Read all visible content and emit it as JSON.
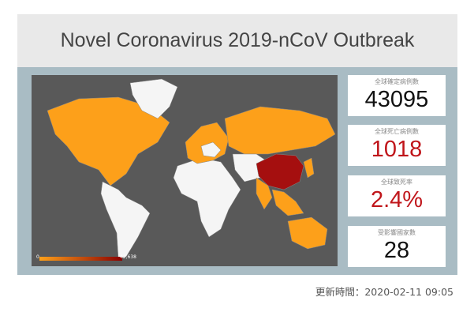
{
  "header": {
    "title": "Novel Coronavirus 2019-nCoV Outbreak"
  },
  "map": {
    "legend": {
      "min_label": "0",
      "max_label": "42,638"
    }
  },
  "stats": [
    {
      "label": "全球確定病例數",
      "value": "43095"
    },
    {
      "label": "全球死亡病例數",
      "value": "1018"
    },
    {
      "label": "全球致死率",
      "value": "2.4%"
    },
    {
      "label": "受影響國家數",
      "value": "28"
    }
  ],
  "footer": {
    "updated": "更新時間：2020-02-11 09:05"
  }
}
